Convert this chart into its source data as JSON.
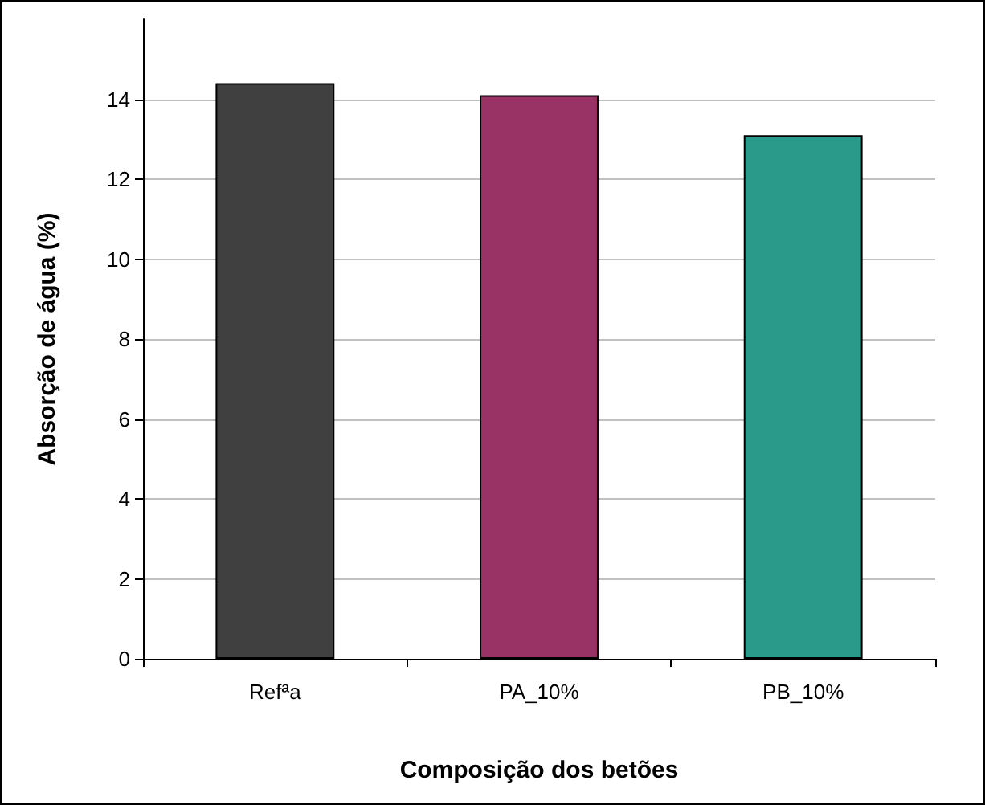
{
  "chart_data": {
    "type": "bar",
    "xlabel": "Composição dos betões",
    "ylabel": "Absorção de água (%)",
    "categories": [
      "Refªa",
      "PA_10%",
      "PB_10%"
    ],
    "values": [
      14.4,
      14.1,
      13.1
    ],
    "colors": [
      "#404040",
      "#993366",
      "#2a9a8a"
    ],
    "ylim": [
      0,
      16
    ],
    "yticks": [
      0,
      2,
      4,
      6,
      8,
      10,
      12,
      14
    ],
    "grid": "y"
  }
}
